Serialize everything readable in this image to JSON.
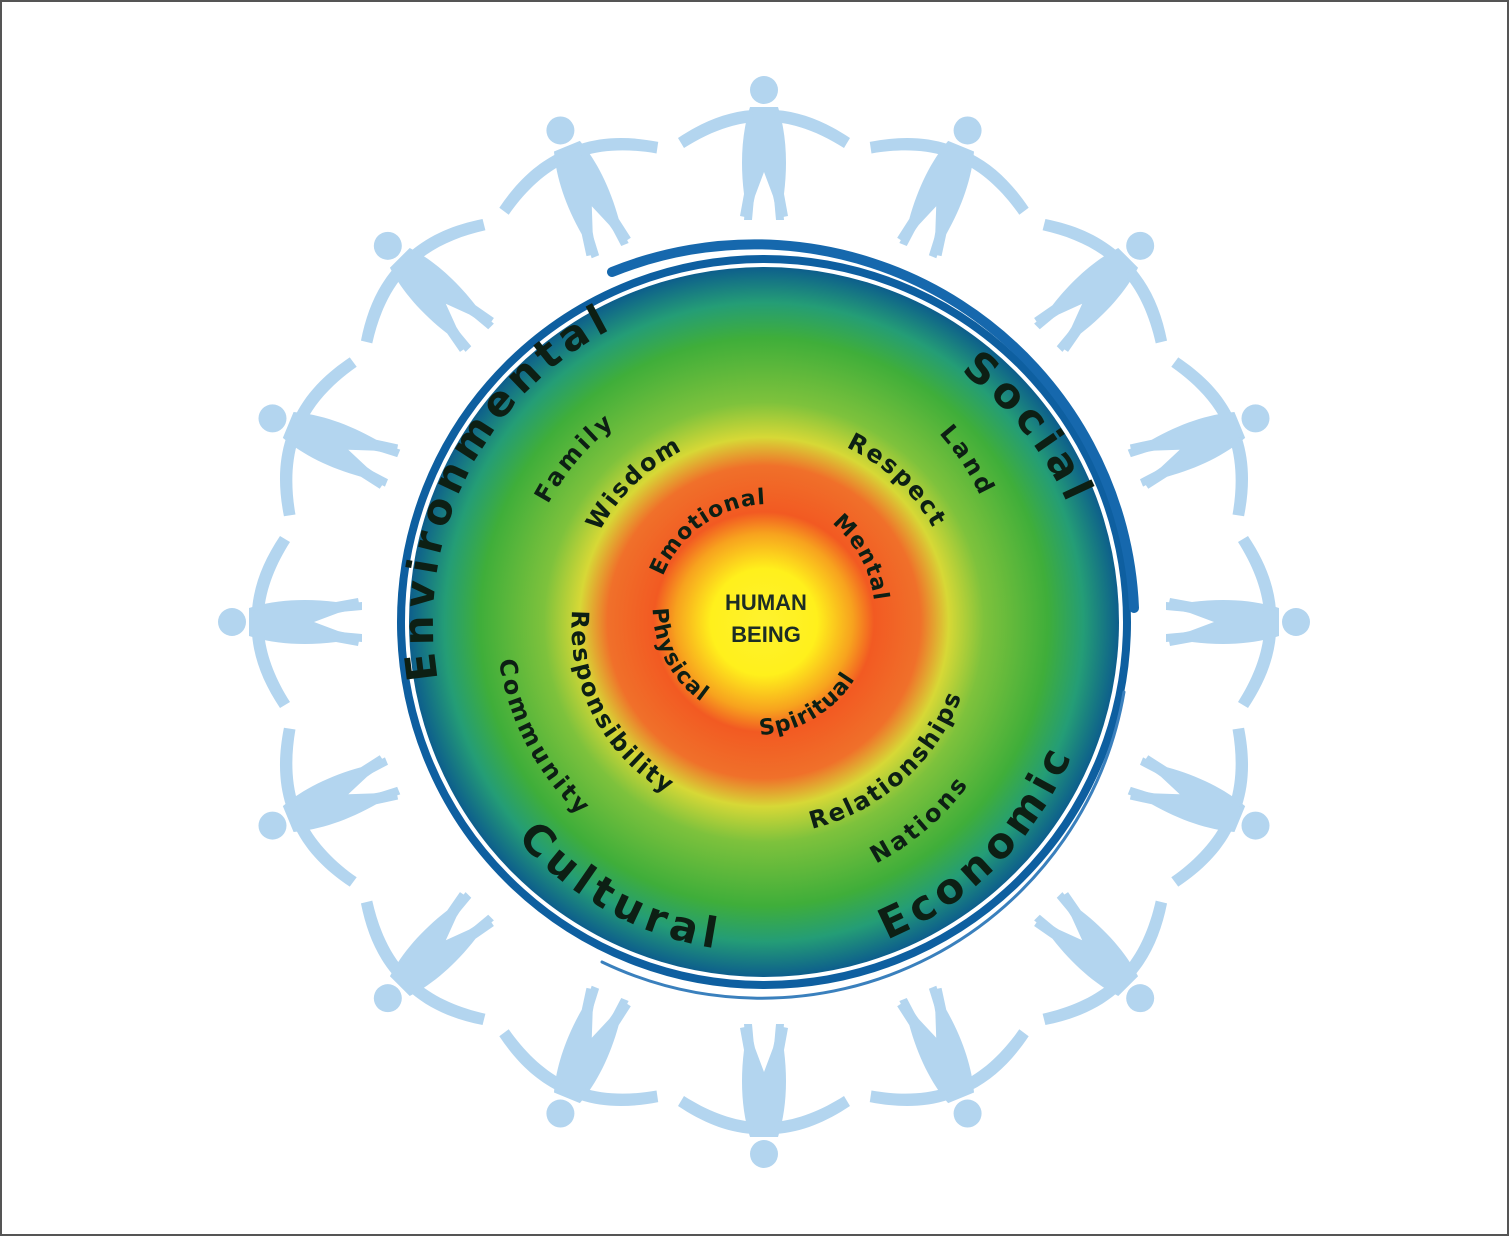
{
  "colors": {
    "people": "#b3d5ef",
    "outer_ring": "#0e5fa0",
    "green": "#3fae3a",
    "orange": "#f25a22",
    "yellow": "#fff22e"
  },
  "people_icon": "people-holding-hands-icon",
  "diagram": {
    "center": {
      "line1": "HUMAN",
      "line2": "BEING"
    },
    "inner_ring": {
      "emotional": "Emotional",
      "mental": "Mental",
      "spiritual": "Spiritual",
      "physical": "Physical"
    },
    "values_ring": {
      "wisdom": "Wisdom",
      "respect": "Respect",
      "relationships": "Relationships",
      "responsibility": "Responsibility"
    },
    "connections_ring": {
      "family": "Family",
      "land": "Land",
      "nations": "Nations",
      "community": "Community"
    },
    "outer_ring": {
      "environmental": "Environmental",
      "social": "Social",
      "economic": "Economic",
      "cultural": "Cultural"
    }
  }
}
